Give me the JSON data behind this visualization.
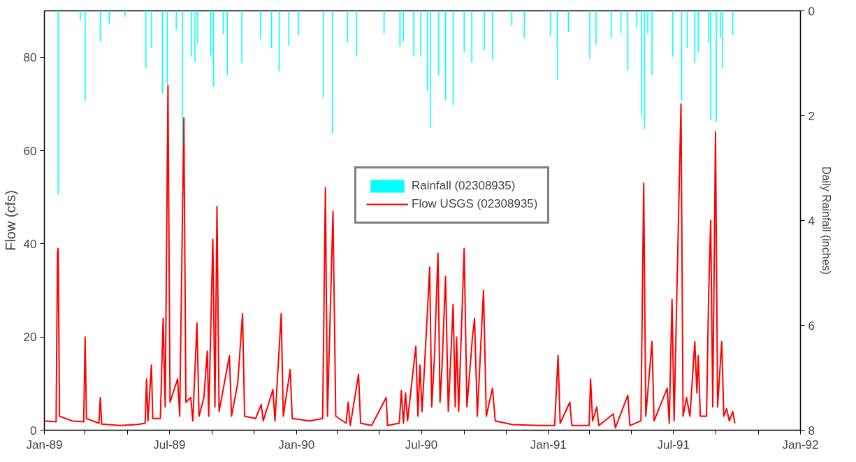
{
  "chart_data": {
    "type": "line",
    "ylabel": "Flow (cfs)",
    "y2label": "Daily Rainfall (inches)",
    "xlim": [
      "1989-01-01",
      "1992-01-01"
    ],
    "xticks": [
      {
        "value": "1989-01-01",
        "label": "Jan-89"
      },
      {
        "value": "1989-03-01",
        "label": null
      },
      {
        "value": "1989-05-01",
        "label": null
      },
      {
        "value": "1989-07-01",
        "label": "Jul-89"
      },
      {
        "value": "1989-09-01",
        "label": null
      },
      {
        "value": "1989-11-01",
        "label": null
      },
      {
        "value": "1990-01-01",
        "label": "Jan-90"
      },
      {
        "value": "1990-03-01",
        "label": null
      },
      {
        "value": "1990-05-01",
        "label": null
      },
      {
        "value": "1990-07-01",
        "label": "Jul-90"
      },
      {
        "value": "1990-09-01",
        "label": null
      },
      {
        "value": "1990-11-01",
        "label": null
      },
      {
        "value": "1991-01-01",
        "label": "Jan-91"
      },
      {
        "value": "1991-03-01",
        "label": null
      },
      {
        "value": "1991-05-01",
        "label": null
      },
      {
        "value": "1991-07-01",
        "label": "Jul-91"
      },
      {
        "value": "1991-09-01",
        "label": null
      },
      {
        "value": "1991-11-01",
        "label": null
      },
      {
        "value": "1992-01-01",
        "label": "Jan-92"
      }
    ],
    "ylim": [
      0,
      90
    ],
    "yticks": [
      0,
      20,
      40,
      60,
      80
    ],
    "y2lim": [
      8,
      0
    ],
    "y2ticks": [
      0,
      2,
      4,
      6,
      8
    ],
    "grid": false,
    "legend": "center",
    "series": [
      {
        "name": "Rainfall (02308935)",
        "type": "bar",
        "axis": "y2",
        "color": "#00ffff",
        "x": [
          "1989-01-21",
          "1989-02-22",
          "1989-03-01",
          "1989-03-23",
          "1989-04-05",
          "1989-04-28",
          "1989-05-28",
          "1989-06-05",
          "1989-06-21",
          "1989-06-28",
          "1989-07-11",
          "1989-07-20",
          "1989-08-02",
          "1989-08-07",
          "1989-08-11",
          "1989-08-30",
          "1989-09-03",
          "1989-09-17",
          "1989-09-23",
          "1989-10-14",
          "1989-11-10",
          "1989-11-26",
          "1989-12-07",
          "1989-12-21",
          "1990-01-04",
          "1990-02-09",
          "1990-02-22",
          "1990-03-16",
          "1990-03-29",
          "1990-05-08",
          "1990-05-31",
          "1990-06-05",
          "1990-06-20",
          "1990-06-30",
          "1990-07-10",
          "1990-07-14",
          "1990-07-26",
          "1990-08-05",
          "1990-08-16",
          "1990-09-01",
          "1990-09-12",
          "1990-09-30",
          "1990-10-12",
          "1990-11-09",
          "1990-11-27",
          "1991-01-04",
          "1991-01-14",
          "1991-01-30",
          "1991-03-02",
          "1991-03-11",
          "1991-04-02",
          "1991-04-16",
          "1991-04-26",
          "1991-05-09",
          "1991-05-16",
          "1991-05-20",
          "1991-05-25",
          "1991-05-31",
          "1991-06-30",
          "1991-07-13",
          "1991-07-21",
          "1991-08-01",
          "1991-08-06",
          "1991-08-21",
          "1991-08-24",
          "1991-09-01",
          "1991-09-07",
          "1991-09-10",
          "1991-09-25"
        ],
        "values": [
          3.5,
          0.17,
          1.72,
          0.58,
          0.24,
          0.11,
          1.09,
          0.7,
          1.58,
          1.4,
          0.36,
          2.54,
          0.87,
          0.98,
          0.62,
          0.87,
          1.44,
          0.44,
          1.23,
          0.99,
          0.54,
          0.71,
          1.15,
          0.67,
          0.46,
          1.65,
          2.34,
          0.6,
          0.87,
          0.43,
          0.68,
          0.58,
          0.87,
          0.87,
          1.52,
          2.23,
          1.23,
          1.7,
          1.81,
          0.79,
          0.99,
          0.75,
          0.93,
          0.28,
          0.51,
          0.47,
          1.32,
          0.4,
          0.91,
          0.64,
          0.52,
          0.42,
          1.14,
          0.31,
          1.99,
          2.26,
          0.44,
          1.22,
          0.87,
          1.72,
          0.71,
          0.99,
          0.78,
          0.6,
          2.08,
          2.12,
          0.52,
          1.09,
          0.46
        ]
      },
      {
        "name": "Flow USGS (02308935)",
        "color": "#ff0000",
        "x": [
          "1989-01-01",
          "1989-01-18",
          "1989-01-20",
          "1989-01-21",
          "1989-01-23",
          "1989-02-10",
          "1989-02-27",
          "1989-03-01",
          "1989-03-03",
          "1989-03-21",
          "1989-03-23",
          "1989-03-25",
          "1989-04-20",
          "1989-05-15",
          "1989-05-27",
          "1989-05-29",
          "1989-05-31",
          "1989-06-05",
          "1989-06-07",
          "1989-06-18",
          "1989-06-22",
          "1989-06-25",
          "1989-06-29",
          "1989-07-02",
          "1989-07-13",
          "1989-07-16",
          "1989-07-22",
          "1989-07-25",
          "1989-08-01",
          "1989-08-04",
          "1989-08-10",
          "1989-08-13",
          "1989-08-20",
          "1989-08-25",
          "1989-08-27",
          "1989-09-02",
          "1989-09-05",
          "1989-09-08",
          "1989-09-11",
          "1989-09-26",
          "1989-09-29",
          "1989-10-08",
          "1989-10-15",
          "1989-10-18",
          "1989-11-03",
          "1989-11-11",
          "1989-11-14",
          "1989-11-28",
          "1989-12-01",
          "1989-12-10",
          "1989-12-13",
          "1989-12-23",
          "1989-12-26",
          "1990-01-20",
          "1990-02-08",
          "1990-02-12",
          "1990-02-15",
          "1990-02-23",
          "1990-02-27",
          "1990-03-14",
          "1990-03-17",
          "1990-03-20",
          "1990-04-01",
          "1990-04-04",
          "1990-04-20",
          "1990-05-11",
          "1990-05-13",
          "1990-05-30",
          "1990-06-02",
          "1990-06-05",
          "1990-06-08",
          "1990-06-11",
          "1990-06-23",
          "1990-06-26",
          "1990-06-29",
          "1990-07-02",
          "1990-07-10",
          "1990-07-13",
          "1990-07-16",
          "1990-07-20",
          "1990-07-25",
          "1990-07-28",
          "1990-07-31",
          "1990-08-05",
          "1990-08-09",
          "1990-08-16",
          "1990-08-19",
          "1990-08-21",
          "1990-08-24",
          "1990-09-01",
          "1990-09-05",
          "1990-09-13",
          "1990-09-16",
          "1990-09-20",
          "1990-09-29",
          "1990-10-03",
          "1990-10-12",
          "1990-10-16",
          "1990-11-10",
          "1990-12-20",
          "1991-01-10",
          "1991-01-15",
          "1991-01-18",
          "1991-02-01",
          "1991-02-04",
          "1991-03-01",
          "1991-03-03",
          "1991-03-06",
          "1991-03-12",
          "1991-03-15",
          "1991-04-05",
          "1991-04-08",
          "1991-04-26",
          "1991-04-29",
          "1991-05-15",
          "1991-05-19",
          "1991-05-22",
          "1991-05-31",
          "1991-06-03",
          "1991-06-22",
          "1991-06-25",
          "1991-06-29",
          "1991-07-02",
          "1991-07-12",
          "1991-07-15",
          "1991-07-20",
          "1991-07-25",
          "1991-08-01",
          "1991-08-04",
          "1991-08-06",
          "1991-08-09",
          "1991-08-18",
          "1991-08-21",
          "1991-08-24",
          "1991-08-27",
          "1991-08-31",
          "1991-09-03",
          "1991-09-09",
          "1991-09-12",
          "1991-09-16",
          "1991-09-20",
          "1991-09-25",
          "1991-09-28"
        ],
        "values": [
          2,
          1.8,
          38,
          39,
          3,
          2,
          1.8,
          20,
          2.5,
          1.5,
          7,
          1.3,
          1,
          1.2,
          1.5,
          11,
          2,
          14,
          2.5,
          2.5,
          24,
          5,
          74,
          6,
          11,
          3,
          67,
          6,
          7,
          2,
          23,
          3,
          7,
          17,
          3,
          41,
          5,
          48,
          4,
          16,
          3,
          10,
          25,
          3,
          2.5,
          5.5,
          2,
          8.7,
          2,
          25,
          3,
          13,
          2.5,
          2,
          2.5,
          52,
          3,
          47,
          3,
          1.5,
          6,
          1,
          12,
          1.5,
          1,
          7,
          1,
          1.5,
          8.5,
          1.5,
          8,
          2,
          18,
          3,
          14,
          4,
          26,
          35,
          5,
          16,
          38,
          6,
          14,
          33,
          4,
          27,
          5,
          20,
          4,
          39,
          5,
          20,
          24,
          3,
          30,
          3,
          9,
          2,
          1.2,
          1,
          1,
          16,
          1.5,
          6,
          1,
          1,
          11,
          2,
          5,
          1,
          3.5,
          0.5,
          7.5,
          1,
          2,
          53,
          3,
          19,
          2,
          9,
          1.5,
          28,
          2,
          70,
          3,
          7,
          3,
          19,
          8,
          16,
          3,
          3,
          29,
          45,
          5,
          64,
          5,
          19,
          3,
          4.6,
          2,
          4,
          1.5
        ]
      }
    ]
  }
}
